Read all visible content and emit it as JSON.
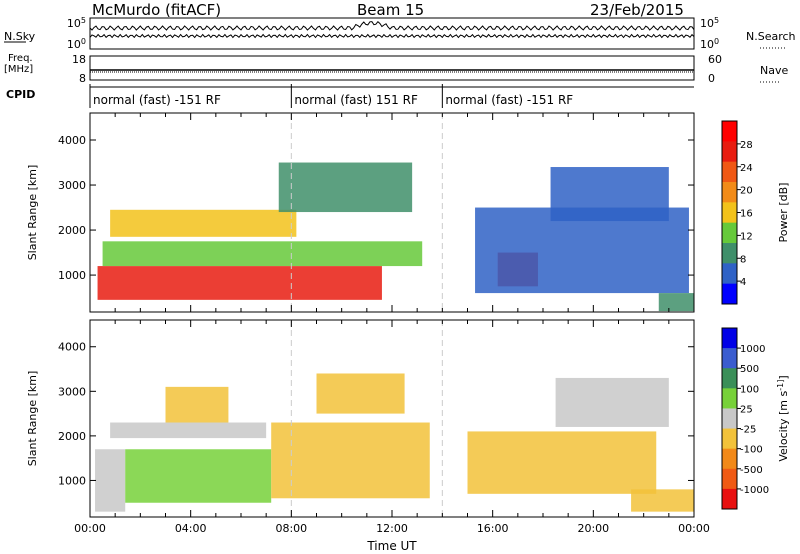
{
  "header": {
    "station": "McMurdo (fitACF)",
    "beam": "Beam 15",
    "date": "23/Feb/2015"
  },
  "labels": {
    "nsky": "N.Sky",
    "nsearch": "N.Search",
    "freq": "Freq.",
    "mhz": "[MHz]",
    "nave": "Nave",
    "cpid": "CPID",
    "nsky_ticks": [
      "10^5",
      "10^0"
    ],
    "freq_ticks": [
      "18",
      "8"
    ],
    "nave_ticks": [
      "60",
      "0"
    ],
    "nsearch_ticks": [
      "10^5",
      "10^0"
    ]
  },
  "colors": {
    "power_scale": [
      "#0000ff",
      "#2f62c6",
      "#3f8f6a",
      "#66c93a",
      "#f2c21b",
      "#f28b18",
      "#f05814",
      "#e81c10",
      "#ff0000"
    ],
    "velocity_scale": [
      "#0000e6",
      "#3a5ccf",
      "#3a8f58",
      "#77d139",
      "#c8c8c8",
      "#f2c23a",
      "#f28918",
      "#f05a14",
      "#e81010"
    ]
  },
  "chart_data": [
    {
      "type": "table",
      "name": "CPID",
      "segments": [
        {
          "start": 0,
          "end": 8,
          "label": "normal (fast) -151 RF"
        },
        {
          "start": 8,
          "end": 14,
          "label": "normal (fast) 151 RF"
        },
        {
          "start": 14,
          "end": 24,
          "label": "normal (fast) -151 RF"
        }
      ]
    },
    {
      "type": "heatmap",
      "name": "power",
      "xlabel": "",
      "ylabel": "Slant Range [km]",
      "xlim": [
        0,
        24
      ],
      "ylim": [
        180,
        4600
      ],
      "yticks": [
        1000,
        2000,
        3000,
        4000
      ],
      "colorbar": {
        "label": "Power [dB]",
        "ticks": [
          "4",
          "8",
          "12",
          "16",
          "20",
          "24",
          "28"
        ],
        "range": [
          0,
          30
        ]
      },
      "bands": [
        {
          "x0": 0.3,
          "x1": 11.6,
          "y0": 450,
          "y1": 1200,
          "value": 24
        },
        {
          "x0": 0.5,
          "x1": 13.2,
          "y0": 1200,
          "y1": 1750,
          "value": 12
        },
        {
          "x0": 0.8,
          "x1": 8.2,
          "y0": 1850,
          "y1": 2450,
          "value": 14
        },
        {
          "x0": 7.5,
          "x1": 12.8,
          "y0": 2400,
          "y1": 3500,
          "value": 9
        },
        {
          "x0": 16.2,
          "x1": 17.8,
          "y0": 750,
          "y1": 1500,
          "value": 24
        },
        {
          "x0": 15.3,
          "x1": 23.8,
          "y0": 600,
          "y1": 2500,
          "value": 6
        },
        {
          "x0": 18.3,
          "x1": 23.0,
          "y0": 2200,
          "y1": 3400,
          "value": 6
        },
        {
          "x0": 22.6,
          "x1": 24.0,
          "y0": 200,
          "y1": 600,
          "value": 8
        }
      ]
    },
    {
      "type": "heatmap",
      "name": "velocity",
      "xlabel": "Time UT",
      "ylabel": "Slant Range [km]",
      "xlim": [
        0,
        24
      ],
      "ylim": [
        180,
        4600
      ],
      "xticks": [
        "00:00",
        "04:00",
        "08:00",
        "12:00",
        "16:00",
        "20:00",
        "00:00"
      ],
      "yticks": [
        1000,
        2000,
        3000,
        4000
      ],
      "colorbar": {
        "label": "Velocity [m s^-1]",
        "ticks": [
          "1000",
          "500",
          "100",
          "25",
          "-25",
          "-100",
          "-500",
          "-1000"
        ],
        "range": [
          -1000,
          1000
        ]
      },
      "bands": [
        {
          "x0": 0.2,
          "x1": 1.4,
          "y0": 300,
          "y1": 1700,
          "value": 80
        },
        {
          "x0": 1.4,
          "x1": 7.2,
          "y0": 500,
          "y1": 1700,
          "value": 300
        },
        {
          "x0": 0.8,
          "x1": 7.0,
          "y0": 1950,
          "y1": 2300,
          "value": 0
        },
        {
          "x0": 3.0,
          "x1": 5.5,
          "y0": 2300,
          "y1": 3100,
          "value": -150
        },
        {
          "x0": 7.2,
          "x1": 13.5,
          "y0": 600,
          "y1": 2300,
          "value": -150
        },
        {
          "x0": 9.0,
          "x1": 12.5,
          "y0": 2500,
          "y1": 3400,
          "value": -120
        },
        {
          "x0": 15.0,
          "x1": 22.5,
          "y0": 700,
          "y1": 2100,
          "value": -150
        },
        {
          "x0": 21.5,
          "x1": 24.0,
          "y0": 300,
          "y1": 800,
          "value": -150
        },
        {
          "x0": 18.5,
          "x1": 23.0,
          "y0": 2200,
          "y1": 3300,
          "value": 0
        }
      ]
    }
  ]
}
